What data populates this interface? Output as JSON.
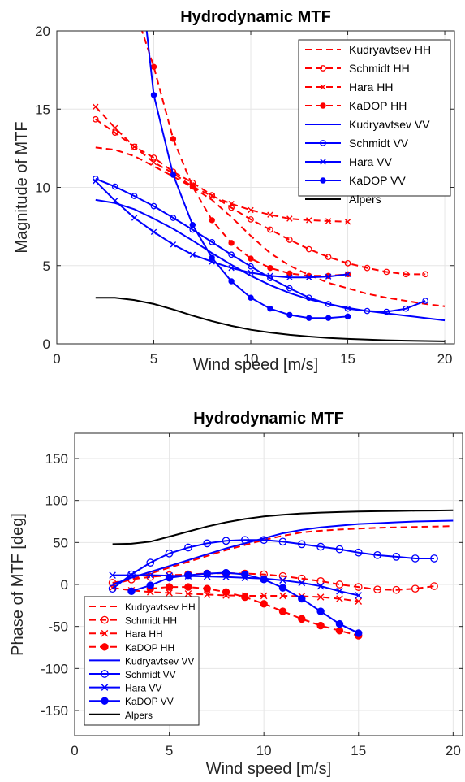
{
  "chart_data": [
    {
      "type": "line",
      "title": "Hydrodynamic MTF",
      "xlabel": "Wind speed [m/s]",
      "ylabel": "Magnitude of MTF",
      "xlim": [
        0,
        20.5
      ],
      "ylim": [
        0,
        20
      ],
      "xticks": [
        0,
        5,
        10,
        15,
        20
      ],
      "yticks": [
        0,
        5,
        10,
        15,
        20
      ],
      "grid": true,
      "legend_position": "top-right",
      "series": [
        {
          "name": "Kudryavtsev HH",
          "color": "#ff0000",
          "dash": "dashed",
          "marker": "none",
          "x": [
            2,
            3,
            4,
            5,
            6,
            7,
            8,
            9,
            10,
            11,
            12,
            13,
            14,
            15,
            16,
            17,
            18,
            19,
            20
          ],
          "y": [
            12.55,
            12.4,
            12.0,
            11.35,
            10.7,
            10.0,
            9.2,
            8.1,
            6.9,
            5.8,
            5.0,
            4.4,
            3.9,
            3.55,
            3.2,
            2.95,
            2.75,
            2.55,
            2.4
          ]
        },
        {
          "name": "Schmidt HH",
          "color": "#ff0000",
          "dash": "dashed",
          "marker": "circle-open",
          "x": [
            2,
            3,
            4,
            5,
            6,
            7,
            8,
            9,
            10,
            11,
            12,
            13,
            14,
            15,
            16,
            17,
            18,
            19
          ],
          "y": [
            14.35,
            13.5,
            12.6,
            11.9,
            11.0,
            10.3,
            9.5,
            8.7,
            7.95,
            7.3,
            6.65,
            6.05,
            5.55,
            5.15,
            4.85,
            4.6,
            4.45,
            4.45
          ]
        },
        {
          "name": "Hara HH",
          "color": "#ff0000",
          "dash": "dashed",
          "marker": "x",
          "x": [
            2,
            3,
            4,
            5,
            6,
            7,
            8,
            9,
            10,
            11,
            12,
            13,
            14,
            15
          ],
          "y": [
            15.15,
            13.8,
            12.6,
            11.6,
            10.9,
            10.05,
            9.45,
            8.95,
            8.55,
            8.25,
            8.0,
            7.9,
            7.85,
            7.8
          ]
        },
        {
          "name": "KaDOP HH",
          "color": "#ff0000",
          "dash": "dashed",
          "marker": "dot",
          "x": [
            4,
            5,
            6,
            7,
            8,
            9,
            10,
            11,
            12,
            13,
            14,
            15
          ],
          "y": [
            21.5,
            17.7,
            13.1,
            10.05,
            7.9,
            6.45,
            5.45,
            4.85,
            4.5,
            4.35,
            4.35,
            4.45
          ]
        },
        {
          "name": "Kudryavtsev VV",
          "color": "#0000ff",
          "dash": "solid",
          "marker": "none",
          "x": [
            2,
            3,
            4,
            5,
            6,
            7,
            8,
            9,
            10,
            11,
            12,
            13,
            14,
            15,
            16,
            17,
            18,
            19,
            20
          ],
          "y": [
            9.2,
            9.0,
            8.6,
            8.0,
            7.35,
            6.6,
            5.8,
            5.05,
            4.35,
            3.75,
            3.25,
            2.85,
            2.55,
            2.3,
            2.1,
            1.95,
            1.8,
            1.65,
            1.5
          ]
        },
        {
          "name": "Schmidt VV",
          "color": "#0000ff",
          "dash": "solid",
          "marker": "circle-open",
          "x": [
            2,
            3,
            4,
            5,
            6,
            7,
            8,
            9,
            10,
            11,
            12,
            13,
            14,
            15,
            16,
            17,
            18,
            19
          ],
          "y": [
            10.55,
            10.05,
            9.45,
            8.8,
            8.05,
            7.3,
            6.5,
            5.7,
            4.95,
            4.2,
            3.55,
            2.95,
            2.55,
            2.25,
            2.1,
            2.05,
            2.25,
            2.75
          ]
        },
        {
          "name": "Hara VV",
          "color": "#0000ff",
          "dash": "solid",
          "marker": "x",
          "x": [
            2,
            3,
            4,
            5,
            6,
            7,
            8,
            9,
            10,
            11,
            12,
            13,
            14,
            15
          ],
          "y": [
            10.4,
            9.15,
            8.05,
            7.15,
            6.35,
            5.7,
            5.25,
            4.85,
            4.55,
            4.35,
            4.25,
            4.25,
            4.3,
            4.45
          ]
        },
        {
          "name": "KaDOP VV",
          "color": "#0000ff",
          "dash": "solid",
          "marker": "dot",
          "x": [
            4.5,
            5,
            6,
            7,
            8,
            9,
            10,
            11,
            12,
            13,
            14,
            15
          ],
          "y": [
            21.5,
            15.9,
            10.8,
            7.6,
            5.5,
            4.0,
            2.95,
            2.25,
            1.85,
            1.65,
            1.65,
            1.75
          ]
        },
        {
          "name": "Alpers",
          "color": "#000000",
          "dash": "solid",
          "marker": "none",
          "x": [
            2,
            3,
            4,
            5,
            6,
            7,
            8,
            9,
            10,
            11,
            12,
            13,
            14,
            15,
            16,
            17,
            18,
            19,
            20
          ],
          "y": [
            2.95,
            2.95,
            2.8,
            2.55,
            2.2,
            1.8,
            1.45,
            1.15,
            0.9,
            0.72,
            0.58,
            0.47,
            0.38,
            0.32,
            0.27,
            0.23,
            0.2,
            0.18,
            0.16
          ]
        }
      ]
    },
    {
      "type": "line",
      "title": "Hydrodynamic MTF",
      "xlabel": "Wind speed [m/s]",
      "ylabel": "Phase of MTF [deg]",
      "xlim": [
        0,
        20.5
      ],
      "ylim": [
        -180,
        180
      ],
      "xticks": [
        0,
        5,
        10,
        15,
        20
      ],
      "yticks": [
        -150,
        -100,
        -50,
        0,
        50,
        100,
        150
      ],
      "grid": true,
      "legend_position": "bottom-left",
      "series": [
        {
          "name": "Kudryavtsev HH",
          "color": "#ff0000",
          "dash": "dashed",
          "marker": "none",
          "x": [
            2,
            3,
            4,
            5,
            6,
            7,
            8,
            9,
            10,
            11,
            12,
            13,
            14,
            15,
            16,
            17,
            18,
            19,
            20
          ],
          "y": [
            0,
            6,
            13,
            20,
            27,
            34,
            41,
            47,
            53,
            58,
            62,
            64,
            65.5,
            66.5,
            67.5,
            68,
            68.5,
            69,
            69.5
          ]
        },
        {
          "name": "Schmidt HH",
          "color": "#ff0000",
          "dash": "dashed",
          "marker": "circle-open",
          "x": [
            2,
            3,
            4,
            5,
            6,
            7,
            8,
            9,
            10,
            11,
            12,
            13,
            14,
            15,
            16,
            17,
            18,
            19
          ],
          "y": [
            2,
            6,
            9,
            11,
            12,
            13,
            13.5,
            13,
            12,
            10,
            7,
            4,
            0,
            -3,
            -6,
            -6.5,
            -5,
            -2
          ]
        },
        {
          "name": "Hara HH",
          "color": "#ff0000",
          "dash": "dashed",
          "marker": "x",
          "x": [
            2,
            3,
            4,
            5,
            6,
            7,
            8,
            9,
            10,
            11,
            12,
            13,
            14,
            15
          ],
          "y": [
            -4,
            -7,
            -9,
            -10,
            -11,
            -12,
            -13,
            -13.5,
            -13.5,
            -13.5,
            -14,
            -15,
            -17,
            -20
          ]
        },
        {
          "name": "KaDOP HH",
          "color": "#ff0000",
          "dash": "dashed",
          "marker": "dot",
          "x": [
            4,
            5,
            6,
            7,
            8,
            9,
            10,
            11,
            12,
            13,
            14,
            15
          ],
          "y": [
            -5,
            -3,
            -3,
            -5,
            -9,
            -15,
            -23,
            -32,
            -41,
            -49,
            -55,
            -61
          ]
        },
        {
          "name": "Kudryavtsev VV",
          "color": "#0000ff",
          "dash": "solid",
          "marker": "none",
          "x": [
            2,
            3,
            4,
            5,
            6,
            7,
            8,
            9,
            10,
            11,
            12,
            13,
            14,
            15,
            16,
            17,
            18,
            19,
            20
          ],
          "y": [
            0,
            8,
            15,
            22,
            29,
            36,
            43,
            49,
            55,
            61,
            65,
            68,
            70,
            72,
            73,
            74,
            75,
            75.5,
            76
          ]
        },
        {
          "name": "Schmidt VV",
          "color": "#0000ff",
          "dash": "solid",
          "marker": "circle-open",
          "x": [
            2,
            3,
            4,
            5,
            6,
            7,
            8,
            9,
            10,
            11,
            12,
            13,
            14,
            15,
            16,
            17,
            18,
            19
          ],
          "y": [
            -5,
            12,
            26,
            37,
            44,
            49,
            52,
            53,
            53,
            51,
            48,
            45,
            42,
            38,
            35,
            33,
            31,
            31
          ]
        },
        {
          "name": "Hara VV",
          "color": "#0000ff",
          "dash": "solid",
          "marker": "x",
          "x": [
            2,
            3,
            4,
            5,
            6,
            7,
            8,
            9,
            10,
            11,
            12,
            13,
            14,
            15
          ],
          "y": [
            11,
            11,
            11,
            10.5,
            10,
            9.5,
            9,
            8,
            7,
            5,
            2,
            -2,
            -8,
            -13
          ]
        },
        {
          "name": "KaDOP VV",
          "color": "#0000ff",
          "dash": "solid",
          "marker": "dot",
          "x": [
            3,
            4,
            5,
            6,
            7,
            8,
            9,
            10,
            11,
            12,
            13,
            14,
            15
          ],
          "y": [
            -8,
            -1,
            8,
            11,
            13,
            14,
            12,
            6,
            -4,
            -17,
            -32,
            -47,
            -58
          ]
        },
        {
          "name": "Alpers",
          "color": "#000000",
          "dash": "solid",
          "marker": "none",
          "x": [
            2,
            3,
            4,
            5,
            6,
            7,
            8,
            9,
            10,
            11,
            12,
            13,
            14,
            15,
            16,
            17,
            18,
            19,
            20
          ],
          "y": [
            48,
            48.5,
            51,
            57,
            63,
            69,
            74,
            78,
            81,
            83,
            84.5,
            85.5,
            86.2,
            86.8,
            87.2,
            87.5,
            87.8,
            88,
            88.3
          ]
        }
      ]
    }
  ]
}
